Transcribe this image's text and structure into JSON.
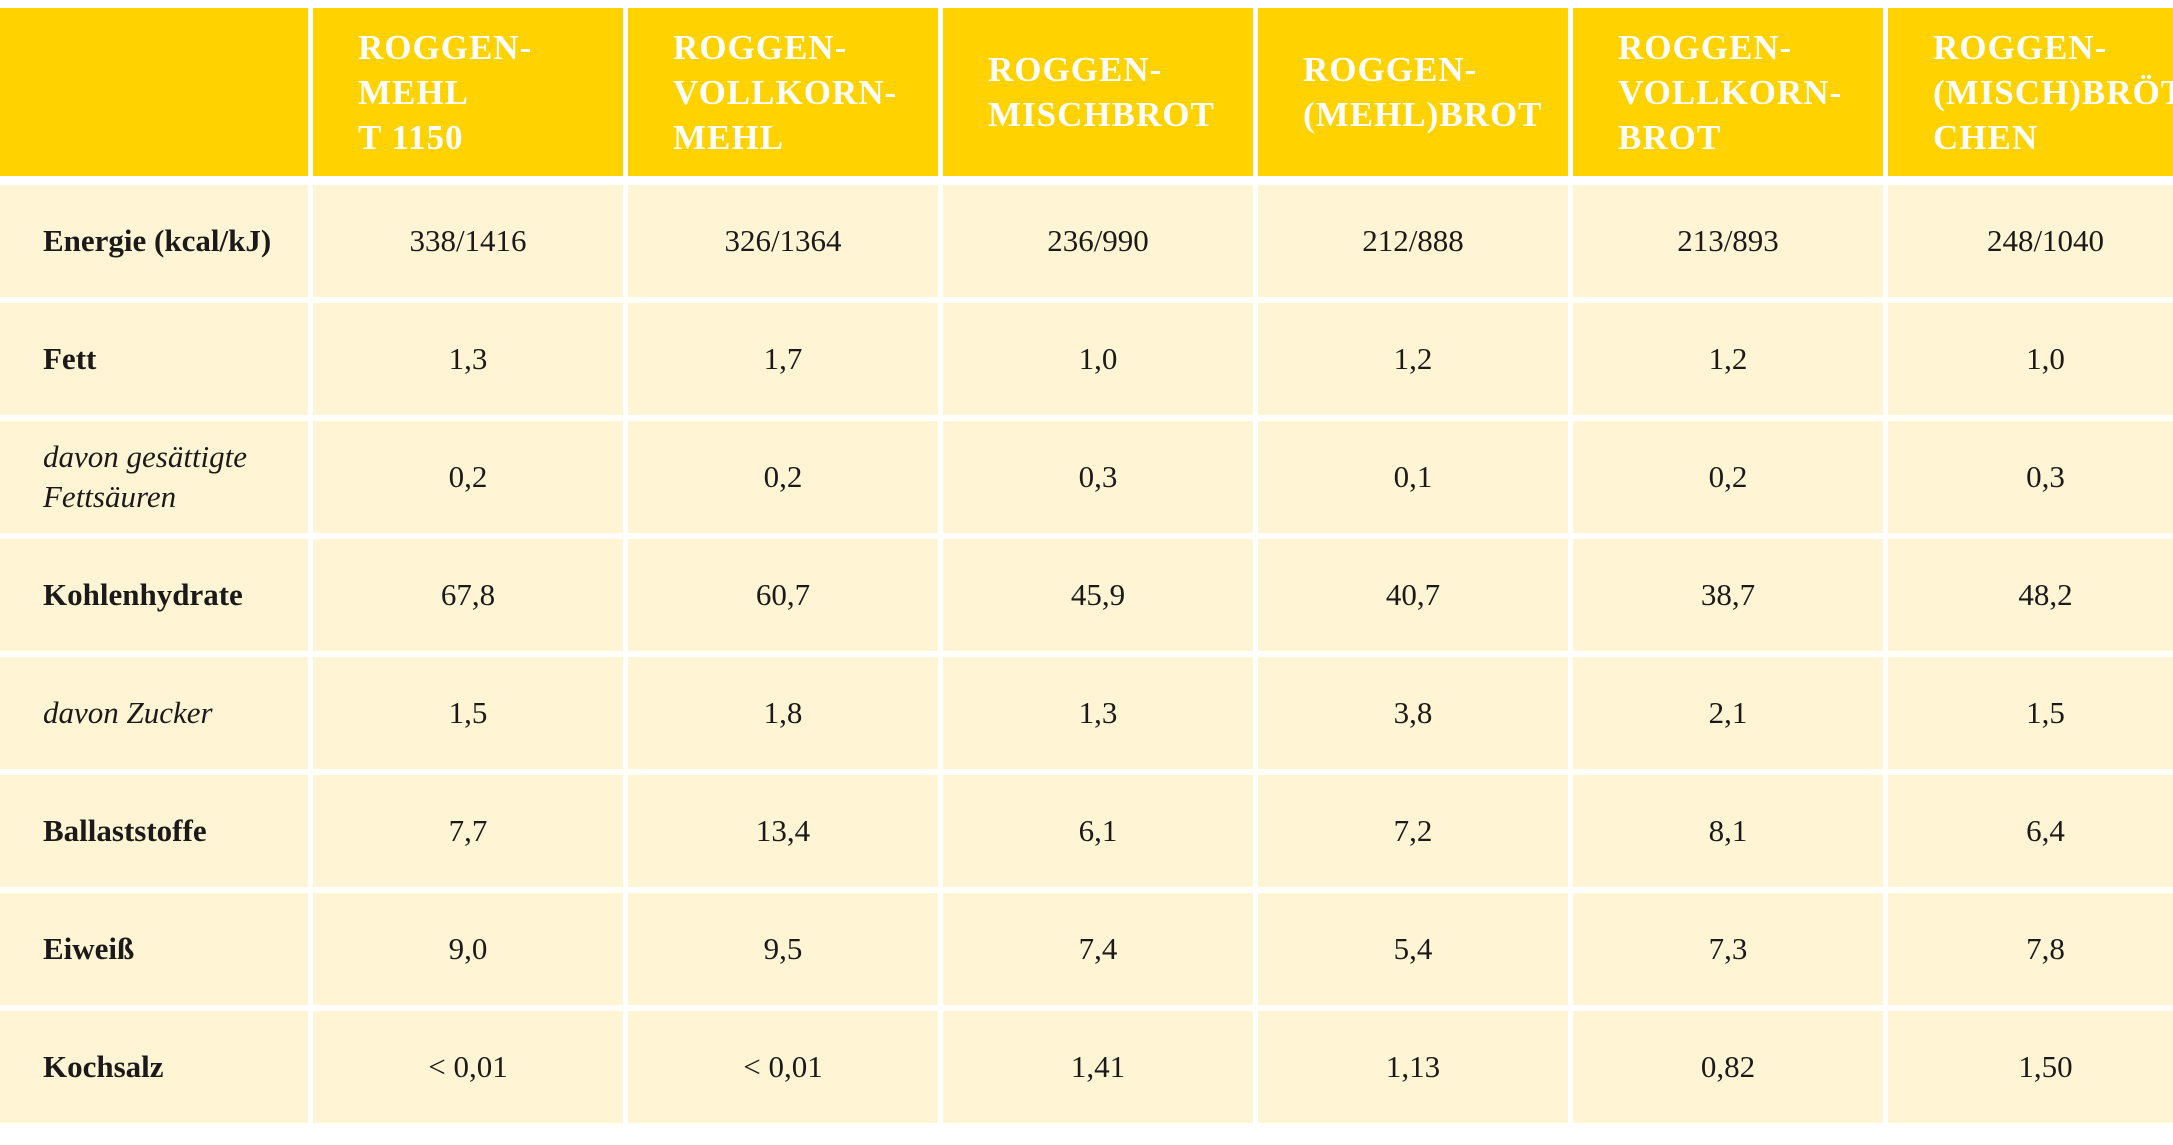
{
  "table": {
    "headers": [
      "",
      "ROGGEN-\nMEHL\nT 1150",
      "ROGGEN-\nVOLLKORN-\nMEHL",
      "ROGGEN-\nMISCHBROT",
      "ROGGEN-\n(MEHL)BROT",
      "ROGGEN-\nVOLLKORN-\nBROT",
      "ROGGEN-\n(MISCH)BRÖT-\nCHEN"
    ],
    "rows": [
      {
        "label": "Energie (kcal/kJ)",
        "italic": false,
        "values": [
          "338/1416",
          "326/1364",
          "236/990",
          "212/888",
          "213/893",
          "248/1040"
        ]
      },
      {
        "label": "Fett",
        "italic": false,
        "values": [
          "1,3",
          "1,7",
          "1,0",
          "1,2",
          "1,2",
          "1,0"
        ]
      },
      {
        "label": "davon gesättigte\nFettsäuren",
        "italic": true,
        "values": [
          "0,2",
          "0,2",
          "0,3",
          "0,1",
          "0,2",
          "0,3"
        ]
      },
      {
        "label": "Kohlenhydrate",
        "italic": false,
        "values": [
          "67,8",
          "60,7",
          "45,9",
          "40,7",
          "38,7",
          "48,2"
        ]
      },
      {
        "label": "davon Zucker",
        "italic": true,
        "values": [
          "1,5",
          "1,8",
          "1,3",
          "3,8",
          "2,1",
          "1,5"
        ]
      },
      {
        "label": "Ballaststoffe",
        "italic": false,
        "values": [
          "7,7",
          "13,4",
          "6,1",
          "7,2",
          "8,1",
          "6,4"
        ]
      },
      {
        "label": "Eiweiß",
        "italic": false,
        "values": [
          "9,0",
          "9,5",
          "7,4",
          "5,4",
          "7,3",
          "7,8"
        ]
      },
      {
        "label": "Kochsalz",
        "italic": false,
        "values": [
          "< 0,01",
          "< 0,01",
          "1,41",
          "1,13",
          "0,82",
          "1,50"
        ]
      }
    ]
  },
  "colors": {
    "header_bg": "#ffd200",
    "header_text": "#ffffff",
    "body_bg": "#fff4d3",
    "body_text": "#1a1a1a"
  }
}
